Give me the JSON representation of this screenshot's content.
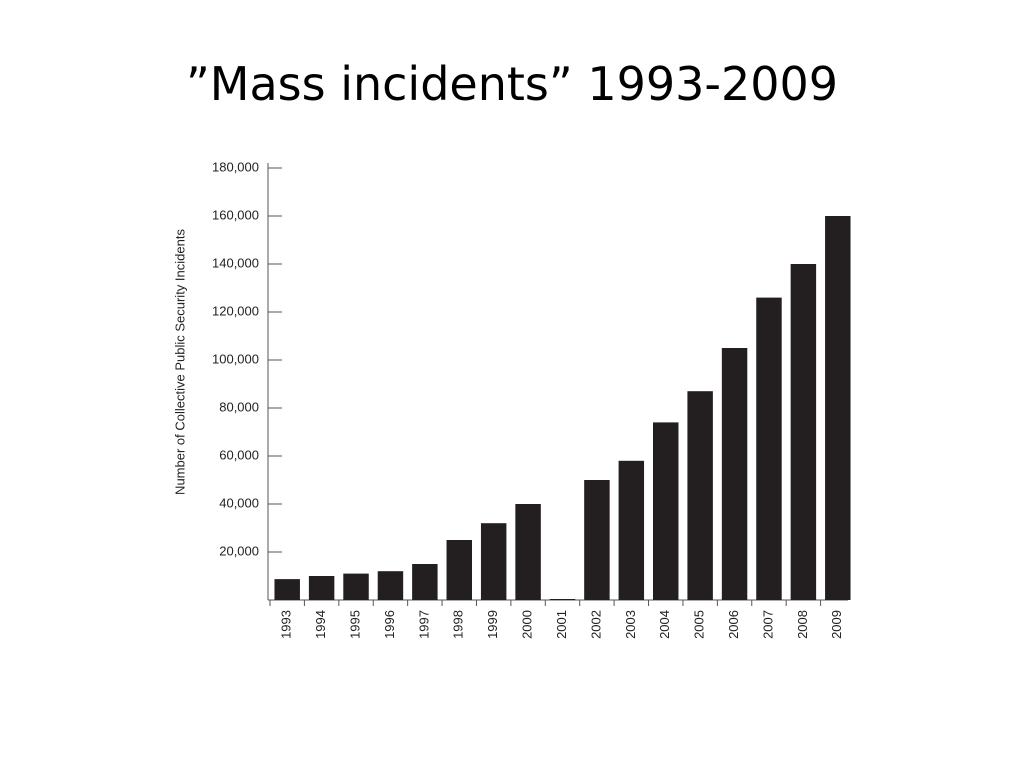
{
  "chart_data": {
    "type": "bar",
    "title": "”Mass incidents” 1993-2009",
    "y_label": "Number of Collective Public Security Incidents",
    "categories": [
      "1993",
      "1994",
      "1995",
      "1996",
      "1997",
      "1998",
      "1999",
      "2000",
      "2001",
      "2002",
      "2003",
      "2004",
      "2005",
      "2006",
      "2007",
      "2008",
      "2009"
    ],
    "values": [
      8700,
      10000,
      11000,
      12000,
      15000,
      25000,
      32000,
      40000,
      0,
      50000,
      58000,
      74000,
      87000,
      105000,
      126000,
      140000,
      160000
    ],
    "color": "#231f20",
    "ylim": [
      0,
      180000
    ],
    "yticks": [
      {
        "value": 20000,
        "label": "20,000"
      },
      {
        "value": 40000,
        "label": "40,000"
      },
      {
        "value": 60000,
        "label": "60,000"
      },
      {
        "value": 80000,
        "label": "80,000"
      },
      {
        "value": 100000,
        "label": "100,000"
      },
      {
        "value": 120000,
        "label": "120,000"
      },
      {
        "value": 140000,
        "label": "140,000"
      },
      {
        "value": 160000,
        "label": "160,000"
      },
      {
        "value": 180000,
        "label": "180,000"
      }
    ],
    "grid": false
  }
}
